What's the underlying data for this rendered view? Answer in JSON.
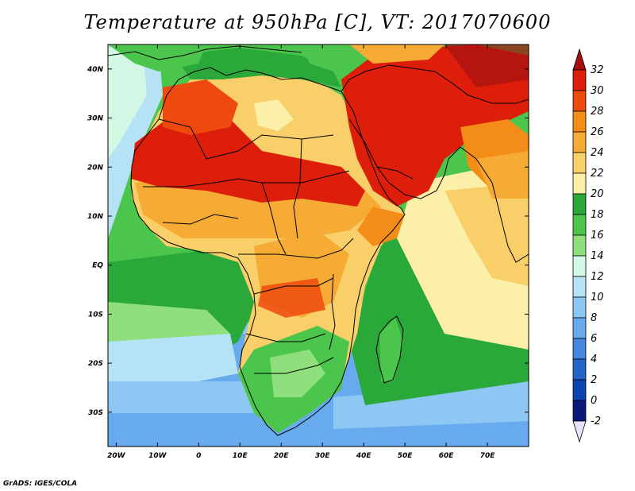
{
  "title": "Temperature at 950hPa [C], VT: 2017070600",
  "credit": "GrADS: IGES/COLA",
  "map": {
    "lon_range": [
      -22,
      80
    ],
    "lat_range": [
      -37,
      45
    ],
    "lon_ticks": [
      {
        "lon": -20,
        "label": "20W"
      },
      {
        "lon": -10,
        "label": "10W"
      },
      {
        "lon": 0,
        "label": "0"
      },
      {
        "lon": 10,
        "label": "10E"
      },
      {
        "lon": 20,
        "label": "20E"
      },
      {
        "lon": 30,
        "label": "30E"
      },
      {
        "lon": 40,
        "label": "40E"
      },
      {
        "lon": 50,
        "label": "50E"
      },
      {
        "lon": 60,
        "label": "60E"
      },
      {
        "lon": 70,
        "label": "70E"
      }
    ],
    "lat_ticks": [
      {
        "lat": 40,
        "label": "40N"
      },
      {
        "lat": 30,
        "label": "30N"
      },
      {
        "lat": 20,
        "label": "20N"
      },
      {
        "lat": 10,
        "label": "10N"
      },
      {
        "lat": 0,
        "label": "EQ"
      },
      {
        "lat": -10,
        "label": "10S"
      },
      {
        "lat": -20,
        "label": "20S"
      },
      {
        "lat": -30,
        "label": "30S"
      }
    ]
  },
  "colorbar": {
    "labels": [
      "32",
      "30",
      "28",
      "26",
      "24",
      "22",
      "20",
      "18",
      "16",
      "14",
      "12",
      "10",
      "8",
      "6",
      "4",
      "2",
      "0",
      "-2"
    ],
    "colors": [
      "#a50f0f",
      "#dc1e0a",
      "#ee4a0e",
      "#f38d17",
      "#f5ab34",
      "#f8cf68",
      "#fcf0a8",
      "#2aa83a",
      "#4cc54c",
      "#8fe07c",
      "#d2f7e4",
      "#b6e2f6",
      "#8cc8f3",
      "#68aaee",
      "#4486e0",
      "#2264cc",
      "#0c44b4",
      "#0a1a7a",
      "#e6e2fa"
    ]
  }
}
